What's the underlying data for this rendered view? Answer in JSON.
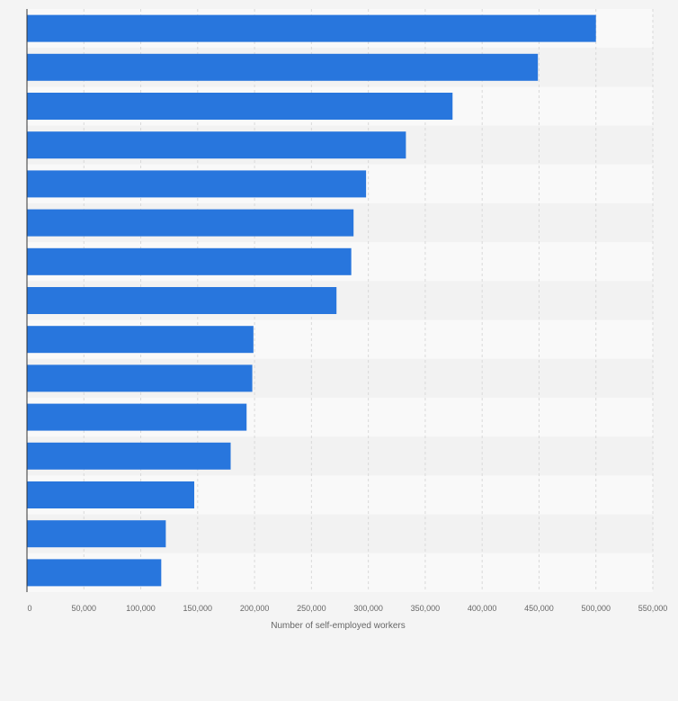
{
  "chart_data": {
    "type": "bar",
    "orientation": "horizontal",
    "title": "",
    "xlabel": "Number of self-employed workers",
    "ylabel": "",
    "categories": [
      "",
      "",
      "",
      "",
      "",
      "",
      "",
      "",
      "",
      "",
      "",
      "",
      "",
      "",
      ""
    ],
    "values": [
      500000,
      449000,
      374000,
      333000,
      298000,
      287000,
      285000,
      272000,
      199000,
      198000,
      193000,
      179000,
      147000,
      122000,
      118000
    ],
    "xlim": [
      0,
      550000
    ],
    "xticks": [
      0,
      50000,
      100000,
      150000,
      200000,
      250000,
      300000,
      350000,
      400000,
      450000,
      500000,
      550000
    ],
    "xtick_labels": [
      "0",
      "50,000",
      "100,000",
      "150,000",
      "200,000",
      "250,000",
      "300,000",
      "350,000",
      "400,000",
      "450,000",
      "500,000",
      "550,000"
    ],
    "grid": true,
    "legend": "none",
    "colors": {
      "bar": "#2876dd",
      "band_light": "#f9f9f9",
      "band_dark": "#f2f2f2",
      "grid": "#d9d9d9",
      "axis": "#333333",
      "page_background": "#f4f4f4"
    }
  }
}
